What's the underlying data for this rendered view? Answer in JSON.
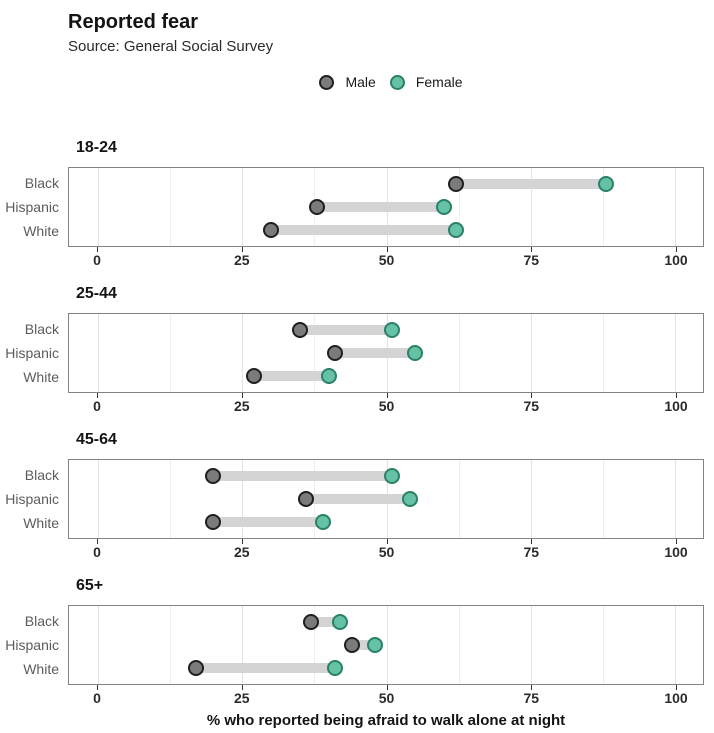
{
  "header": {
    "title": "Reported fear",
    "subtitle": "Source: General Social Survey"
  },
  "legend": {
    "items": [
      {
        "key": "male",
        "label": "Male"
      },
      {
        "key": "female",
        "label": "Female"
      }
    ]
  },
  "axis": {
    "ticks": [
      0,
      25,
      50,
      75,
      100
    ],
    "minor_ticks": [
      12.5,
      37.5,
      62.5,
      87.5
    ],
    "xlabel": "% who reported being afraid to walk alone at night"
  },
  "chart_data": {
    "type": "scatter",
    "subtype": "dumbbell",
    "title": "Reported fear",
    "subtitle": "Source: General Social Survey",
    "xlabel": "% who reported being afraid to walk alone at night",
    "xlim": [
      0,
      100
    ],
    "grid": true,
    "legend_position": "top-center",
    "series": [
      "Male",
      "Female"
    ],
    "panels": [
      {
        "age_group": "18-24",
        "rows": [
          {
            "category": "Black",
            "male": 62,
            "female": 88
          },
          {
            "category": "Hispanic",
            "male": 38,
            "female": 60
          },
          {
            "category": "White",
            "male": 30,
            "female": 62
          }
        ]
      },
      {
        "age_group": "25-44",
        "rows": [
          {
            "category": "Black",
            "male": 35,
            "female": 51
          },
          {
            "category": "Hispanic",
            "male": 41,
            "female": 55
          },
          {
            "category": "White",
            "male": 27,
            "female": 40
          }
        ]
      },
      {
        "age_group": "45-64",
        "rows": [
          {
            "category": "Black",
            "male": 20,
            "female": 51
          },
          {
            "category": "Hispanic",
            "male": 36,
            "female": 54
          },
          {
            "category": "White",
            "male": 20,
            "female": 39
          }
        ]
      },
      {
        "age_group": "65+",
        "rows": [
          {
            "category": "Black",
            "male": 37,
            "female": 42
          },
          {
            "category": "Hispanic",
            "male": 44,
            "female": 48
          },
          {
            "category": "White",
            "male": 17,
            "female": 41
          }
        ]
      }
    ]
  },
  "colors": {
    "male_fill": "#7b7b7b",
    "male_stroke": "#1f1f1f",
    "female_fill": "#66c2a5",
    "female_stroke": "#2a8068",
    "bar": "#d4d4d4",
    "grid_major": "#e3e3e3",
    "grid_minor": "#efefef",
    "panel_border": "#828282"
  }
}
